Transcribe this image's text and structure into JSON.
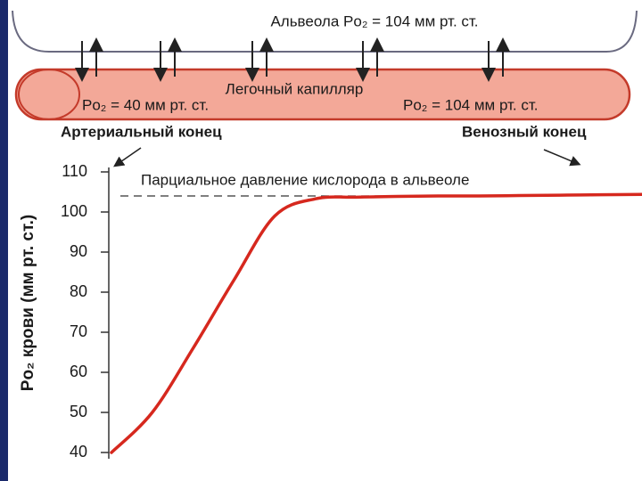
{
  "diagram": {
    "alveolus_label": "Альвеола Po₂ = 104 мм рт. ст.",
    "capillary_label": "Легочный капилляр",
    "arterial_po2": "Po₂ = 40 мм рт. ст.",
    "venous_po2": "Po₂ = 104 мм рт. ст.",
    "arterial_end": "Артериальный конец",
    "venous_end": "Венозный конец"
  },
  "chart_data": {
    "type": "line",
    "ylabel": "Po₂ крови (мм рт. ст.)",
    "categories": [
      null,
      null,
      null,
      null,
      null,
      null,
      null,
      null,
      null,
      null,
      null,
      null,
      null,
      null
    ],
    "series": [
      {
        "color": "#d6281e",
        "values": [
          40,
          50,
          66,
          83,
          99,
          103.3,
          103.7,
          103.9,
          104,
          104,
          104.1,
          104.2,
          104.3,
          104.4
        ]
      }
    ],
    "reference": {
      "value": 104,
      "label": "Парциальное давление кислорода в альвеоле"
    },
    "ylim": [
      40,
      110
    ],
    "yticks": [
      40,
      50,
      60,
      70,
      80,
      90,
      100,
      110
    ]
  }
}
